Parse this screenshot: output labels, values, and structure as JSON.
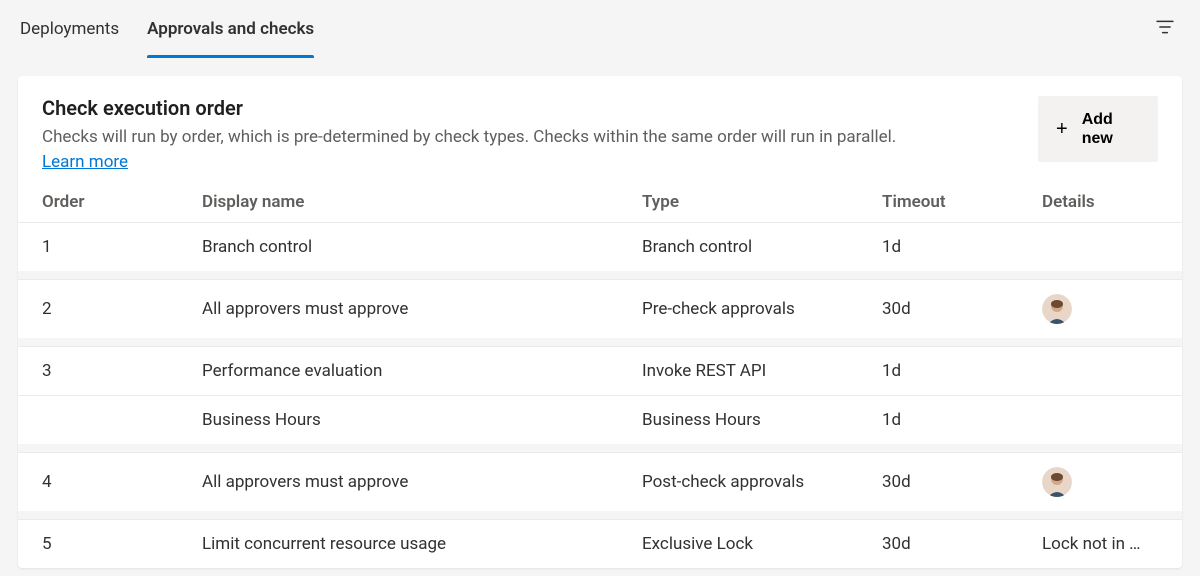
{
  "colors": {
    "accent": "#0078d4",
    "background": "#f5f5f5",
    "card_bg": "#ffffff",
    "text_primary": "#323130",
    "text_secondary": "#605e5c",
    "button_bg": "#f3f2f1",
    "border": "#edebe9"
  },
  "tabs": {
    "items": [
      {
        "label": "Deployments",
        "active": false
      },
      {
        "label": "Approvals and checks",
        "active": true
      }
    ]
  },
  "filter_icon": "filter",
  "card": {
    "title": "Check execution order",
    "description": "Checks will run by order, which is pre-determined by check types. Checks within the same order will run in parallel.",
    "learn_more": "Learn more",
    "add_button": {
      "icon": "+",
      "label": "Add\nnew"
    }
  },
  "table": {
    "columns": [
      "Order",
      "Display name",
      "Type",
      "Timeout",
      "Details"
    ],
    "groups": [
      {
        "rows": [
          {
            "order": "1",
            "name": "Branch control",
            "type": "Branch control",
            "timeout": "1d",
            "details": ""
          }
        ]
      },
      {
        "rows": [
          {
            "order": "2",
            "name": "All approvers must approve",
            "type": "Pre-check approvals",
            "timeout": "30d",
            "details_avatar": true
          }
        ]
      },
      {
        "rows": [
          {
            "order": "3",
            "name": "Performance evaluation",
            "type": "Invoke REST API",
            "timeout": "1d",
            "details": ""
          },
          {
            "order": "",
            "name": "Business Hours",
            "type": "Business Hours",
            "timeout": "1d",
            "details": ""
          }
        ]
      },
      {
        "rows": [
          {
            "order": "4",
            "name": "All approvers must approve",
            "type": "Post-check approvals",
            "timeout": "30d",
            "details_avatar": true
          }
        ]
      },
      {
        "rows": [
          {
            "order": "5",
            "name": "Limit concurrent resource usage",
            "type": "Exclusive Lock",
            "timeout": "30d",
            "details": "Lock not in …"
          }
        ]
      }
    ]
  }
}
